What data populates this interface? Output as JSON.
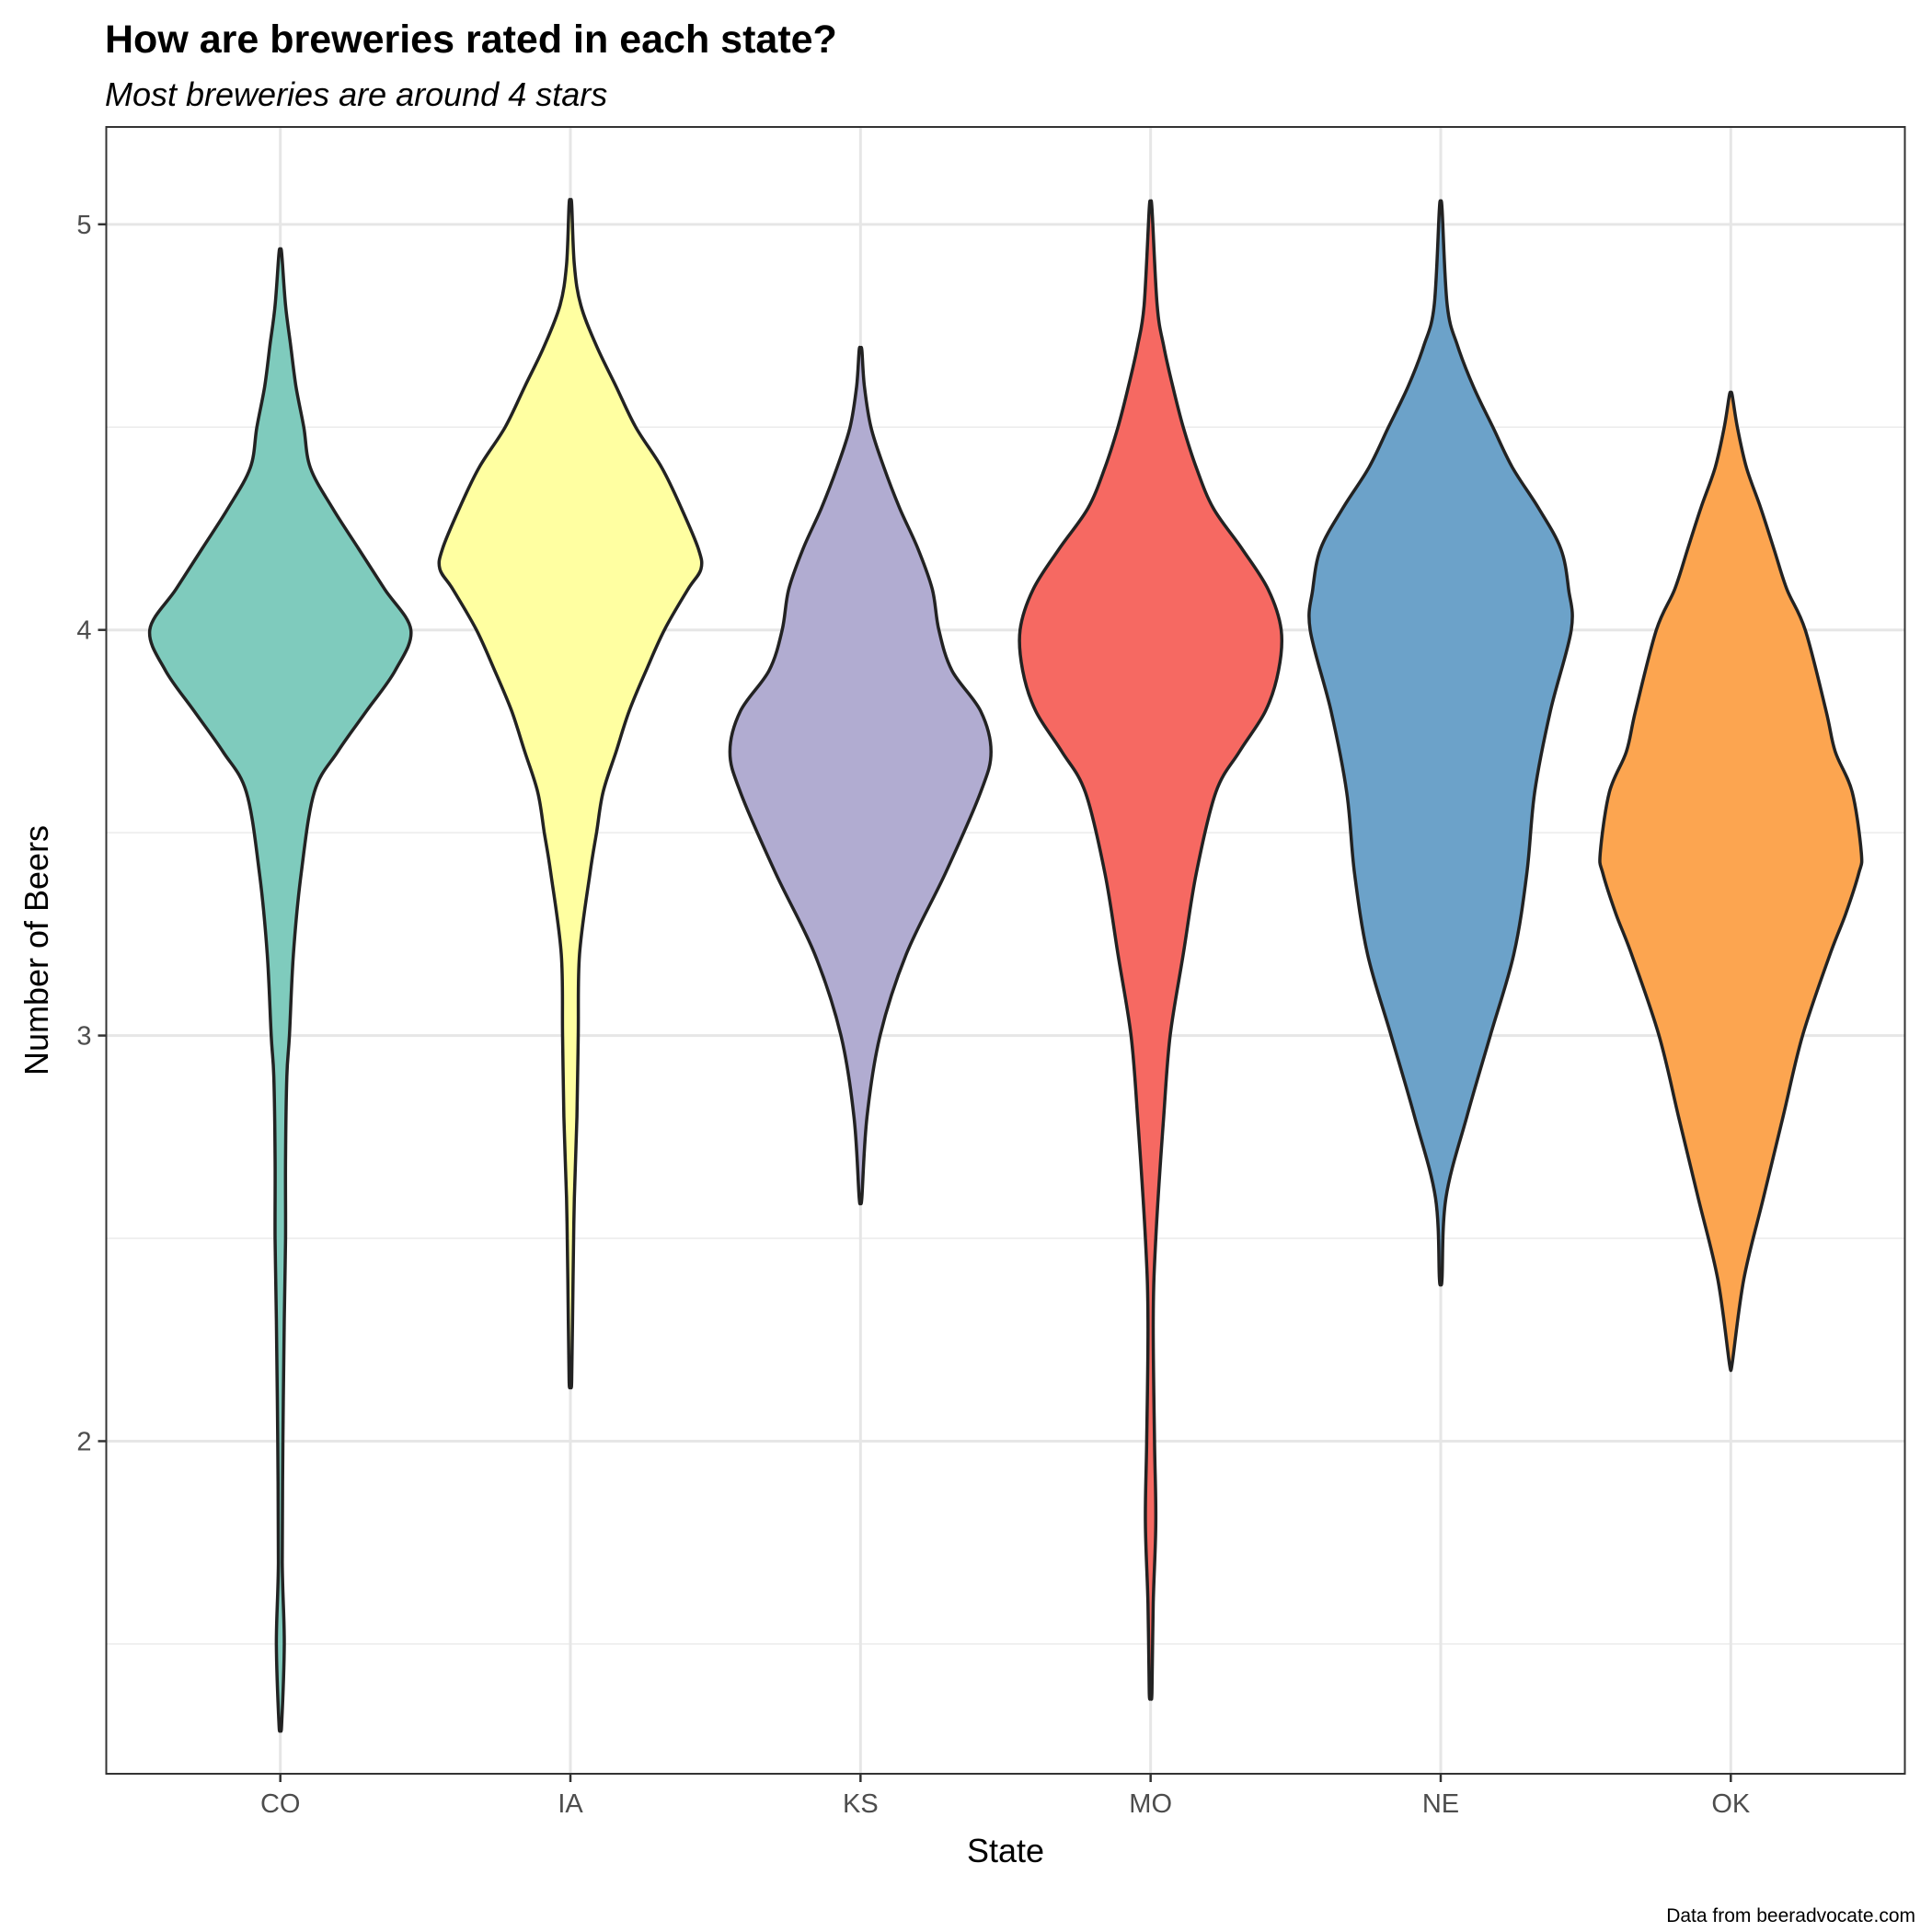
{
  "chart_data": {
    "type": "violin",
    "title": "How are breweries rated in each state?",
    "subtitle": "Most breweries are around 4 stars",
    "xlabel": "State",
    "ylabel": "Number of Beers",
    "caption": "Data from beeradvocate.com",
    "ylim": [
      1.18,
      5.24
    ],
    "y_ticks": [
      2,
      3,
      4,
      5
    ],
    "y_minor_ticks": [
      1.5,
      2.5,
      3.5,
      4.5
    ],
    "grid": true,
    "legend": "none",
    "categories": [
      "CO",
      "IA",
      "KS",
      "MO",
      "NE",
      "OK"
    ],
    "series": [
      {
        "category": "CO",
        "color": "#7fcbbd",
        "density_profile": [
          [
            1.3,
            0.01
          ],
          [
            1.5,
            0.03
          ],
          [
            1.7,
            0.015
          ],
          [
            2.0,
            0.02
          ],
          [
            2.3,
            0.03
          ],
          [
            2.5,
            0.04
          ],
          [
            2.7,
            0.04
          ],
          [
            2.9,
            0.05
          ],
          [
            3.0,
            0.07
          ],
          [
            3.2,
            0.1
          ],
          [
            3.4,
            0.16
          ],
          [
            3.6,
            0.26
          ],
          [
            3.7,
            0.44
          ],
          [
            3.8,
            0.66
          ],
          [
            3.9,
            0.88
          ],
          [
            4.0,
            1.0
          ],
          [
            4.1,
            0.8
          ],
          [
            4.2,
            0.6
          ],
          [
            4.3,
            0.4
          ],
          [
            4.4,
            0.23
          ],
          [
            4.5,
            0.18
          ],
          [
            4.6,
            0.12
          ],
          [
            4.7,
            0.08
          ],
          [
            4.8,
            0.04
          ],
          [
            4.93,
            0.01
          ]
        ]
      },
      {
        "category": "IA",
        "color": "#ffffa1",
        "density_profile": [
          [
            2.15,
            0.01
          ],
          [
            2.4,
            0.02
          ],
          [
            2.6,
            0.03
          ],
          [
            2.8,
            0.05
          ],
          [
            3.0,
            0.06
          ],
          [
            3.2,
            0.07
          ],
          [
            3.4,
            0.15
          ],
          [
            3.5,
            0.2
          ],
          [
            3.6,
            0.25
          ],
          [
            3.7,
            0.35
          ],
          [
            3.8,
            0.45
          ],
          [
            3.9,
            0.58
          ],
          [
            4.0,
            0.72
          ],
          [
            4.1,
            0.9
          ],
          [
            4.15,
            1.0
          ],
          [
            4.2,
            0.98
          ],
          [
            4.3,
            0.85
          ],
          [
            4.4,
            0.7
          ],
          [
            4.5,
            0.5
          ],
          [
            4.6,
            0.35
          ],
          [
            4.7,
            0.2
          ],
          [
            4.8,
            0.08
          ],
          [
            4.9,
            0.03
          ],
          [
            5.05,
            0.01
          ]
        ]
      },
      {
        "category": "KS",
        "color": "#b1acd1",
        "density_profile": [
          [
            2.6,
            0.01
          ],
          [
            2.8,
            0.05
          ],
          [
            3.0,
            0.15
          ],
          [
            3.2,
            0.35
          ],
          [
            3.4,
            0.65
          ],
          [
            3.6,
            0.92
          ],
          [
            3.7,
            1.0
          ],
          [
            3.8,
            0.92
          ],
          [
            3.9,
            0.7
          ],
          [
            4.0,
            0.6
          ],
          [
            4.1,
            0.55
          ],
          [
            4.2,
            0.44
          ],
          [
            4.3,
            0.3
          ],
          [
            4.4,
            0.18
          ],
          [
            4.5,
            0.08
          ],
          [
            4.6,
            0.03
          ],
          [
            4.69,
            0.01
          ]
        ]
      },
      {
        "category": "MO",
        "color": "#f66962",
        "density_profile": [
          [
            1.38,
            0.01
          ],
          [
            1.6,
            0.02
          ],
          [
            1.8,
            0.04
          ],
          [
            2.0,
            0.03
          ],
          [
            2.3,
            0.02
          ],
          [
            2.5,
            0.04
          ],
          [
            2.8,
            0.1
          ],
          [
            3.0,
            0.15
          ],
          [
            3.2,
            0.25
          ],
          [
            3.4,
            0.35
          ],
          [
            3.6,
            0.5
          ],
          [
            3.7,
            0.68
          ],
          [
            3.8,
            0.88
          ],
          [
            3.9,
            0.98
          ],
          [
            4.0,
            1.0
          ],
          [
            4.1,
            0.9
          ],
          [
            4.2,
            0.7
          ],
          [
            4.3,
            0.48
          ],
          [
            4.4,
            0.35
          ],
          [
            4.5,
            0.25
          ],
          [
            4.6,
            0.17
          ],
          [
            4.7,
            0.1
          ],
          [
            4.8,
            0.05
          ],
          [
            5.04,
            0.01
          ]
        ]
      },
      {
        "category": "NE",
        "color": "#6ca2c9",
        "density_profile": [
          [
            2.4,
            0.01
          ],
          [
            2.6,
            0.04
          ],
          [
            2.8,
            0.2
          ],
          [
            3.0,
            0.38
          ],
          [
            3.2,
            0.56
          ],
          [
            3.4,
            0.66
          ],
          [
            3.6,
            0.72
          ],
          [
            3.8,
            0.84
          ],
          [
            4.0,
            1.0
          ],
          [
            4.1,
            0.98
          ],
          [
            4.2,
            0.92
          ],
          [
            4.3,
            0.75
          ],
          [
            4.4,
            0.55
          ],
          [
            4.5,
            0.4
          ],
          [
            4.6,
            0.25
          ],
          [
            4.7,
            0.13
          ],
          [
            4.8,
            0.05
          ],
          [
            5.04,
            0.01
          ]
        ]
      },
      {
        "category": "OK",
        "color": "#fca550",
        "density_profile": [
          [
            2.19,
            0.01
          ],
          [
            2.4,
            0.1
          ],
          [
            2.6,
            0.25
          ],
          [
            2.8,
            0.4
          ],
          [
            3.0,
            0.55
          ],
          [
            3.2,
            0.76
          ],
          [
            3.3,
            0.88
          ],
          [
            3.4,
            0.98
          ],
          [
            3.45,
            1.0
          ],
          [
            3.6,
            0.93
          ],
          [
            3.7,
            0.8
          ],
          [
            3.8,
            0.73
          ],
          [
            4.0,
            0.57
          ],
          [
            4.1,
            0.43
          ],
          [
            4.2,
            0.33
          ],
          [
            4.3,
            0.23
          ],
          [
            4.4,
            0.12
          ],
          [
            4.5,
            0.05
          ],
          [
            4.58,
            0.01
          ]
        ]
      }
    ]
  }
}
